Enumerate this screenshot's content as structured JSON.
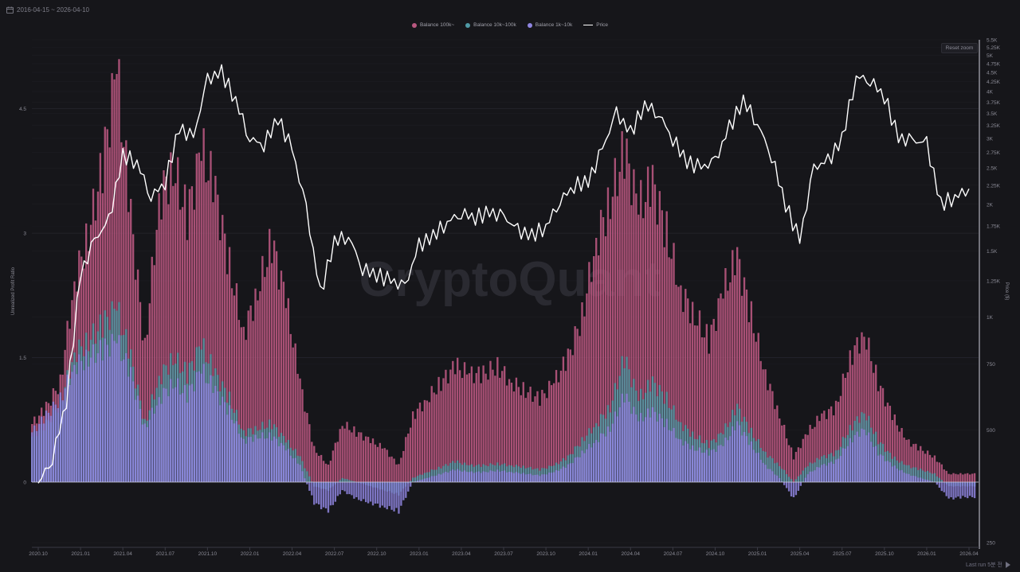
{
  "header": {
    "date_range": "2016-04-15 ~ 2026-04-10",
    "calendar_icon": "calendar-icon",
    "reset_zoom_label": "Reset zoom"
  },
  "watermark": "CryptoQuant",
  "footer": {
    "text": "Last run 5분 전"
  },
  "colors": {
    "background": "#16161a",
    "balance_100k": "#b8577f",
    "balance_10k_100k": "#4f9aa6",
    "balance_1k_10k": "#8f85e0",
    "price": "#ffffff"
  },
  "chart_data": {
    "type": "bar",
    "x_axis_ticks": [
      "2020.10",
      "2021.01",
      "2021.04",
      "2021.07",
      "2021.10",
      "2022.01",
      "2022.04",
      "2022.07",
      "2022.10",
      "2023.01",
      "2023.04",
      "2023.07",
      "2023.10",
      "2024.01",
      "2024.04",
      "2024.07",
      "2024.10",
      "2025.01",
      "2025.04",
      "2025.07",
      "2025.10",
      "2026.01",
      "2026.04"
    ],
    "left_axis": {
      "label": "Unrealized Profit Ratio",
      "ticks": [
        "4.5",
        "3",
        "1.5",
        "0"
      ],
      "ylim": [
        -0.45,
        5.1
      ]
    },
    "right_axis": {
      "label": "Price ($)",
      "scale": "log",
      "ticks": [
        "5.5K",
        "5.25K",
        "5K",
        "4.75K",
        "4.5K",
        "4.25K",
        "4K",
        "3.75K",
        "3.5K",
        "3.25K",
        "3K",
        "2.75K",
        "2.5K",
        "2.25K",
        "2K",
        "1.75K",
        "1.5K",
        "1.25K",
        "1K",
        "750",
        "500",
        "250"
      ],
      "ylim": [
        250,
        5500
      ]
    },
    "legend": [
      "Balance 100k~",
      "Balance 10k~100k",
      "Balance 1k~10k",
      "Price"
    ],
    "legend_position": "top-center",
    "grid": true,
    "months": [
      "2020-10",
      "2020-11",
      "2020-12",
      "2021-01",
      "2021-02",
      "2021-03",
      "2021-04",
      "2021-05",
      "2021-06",
      "2021-07",
      "2021-08",
      "2021-09",
      "2021-10",
      "2021-11",
      "2021-12",
      "2022-01",
      "2022-02",
      "2022-03",
      "2022-04",
      "2022-05",
      "2022-06",
      "2022-07",
      "2022-08",
      "2022-09",
      "2022-10",
      "2022-11",
      "2022-12",
      "2023-01",
      "2023-02",
      "2023-03",
      "2023-04",
      "2023-05",
      "2023-06",
      "2023-07",
      "2023-08",
      "2023-09",
      "2023-10",
      "2023-11",
      "2023-12",
      "2024-01",
      "2024-02",
      "2024-03",
      "2024-04",
      "2024-05",
      "2024-06",
      "2024-07",
      "2024-08",
      "2024-09",
      "2024-10",
      "2024-11",
      "2024-12",
      "2025-01",
      "2025-02",
      "2025-03",
      "2025-04",
      "2025-05",
      "2025-06",
      "2025-07",
      "2025-08",
      "2025-09",
      "2025-10",
      "2025-11",
      "2025-12",
      "2026-01",
      "2026-02",
      "2026-03",
      "2026-04"
    ],
    "series": [
      {
        "name": "Balance 100k~",
        "values": [
          0.7,
          0.9,
          1.2,
          2.4,
          3.0,
          3.8,
          5.0,
          3.2,
          1.6,
          3.4,
          3.8,
          3.2,
          4.0,
          3.5,
          2.6,
          1.8,
          2.3,
          2.9,
          2.2,
          1.2,
          0.4,
          0.2,
          0.7,
          0.6,
          0.5,
          0.4,
          0.2,
          0.8,
          1.0,
          1.2,
          1.4,
          1.3,
          1.3,
          1.4,
          1.2,
          1.1,
          1.0,
          1.2,
          1.5,
          2.0,
          2.9,
          3.4,
          4.0,
          3.3,
          3.6,
          3.0,
          2.3,
          2.0,
          1.7,
          2.3,
          2.7,
          2.0,
          1.3,
          0.8,
          0.3,
          0.6,
          0.8,
          0.9,
          1.5,
          1.8,
          1.2,
          0.8,
          0.5,
          0.4,
          0.3,
          0.1,
          0.1
        ]
      },
      {
        "name": "Balance 10k~100k",
        "values": [
          0.55,
          0.7,
          0.95,
          1.55,
          1.7,
          1.9,
          2.1,
          1.5,
          0.7,
          1.25,
          1.5,
          1.3,
          1.65,
          1.3,
          1.0,
          0.6,
          0.65,
          0.7,
          0.5,
          0.3,
          -0.05,
          -0.1,
          0.05,
          0.0,
          -0.05,
          -0.1,
          -0.15,
          0.05,
          0.12,
          0.18,
          0.25,
          0.2,
          0.2,
          0.22,
          0.2,
          0.18,
          0.15,
          0.2,
          0.3,
          0.5,
          0.7,
          0.9,
          1.5,
          1.0,
          1.2,
          1.0,
          0.7,
          0.55,
          0.45,
          0.6,
          0.9,
          0.6,
          0.35,
          0.2,
          0.0,
          0.2,
          0.3,
          0.35,
          0.65,
          0.85,
          0.5,
          0.3,
          0.2,
          0.15,
          0.1,
          -0.05,
          -0.05
        ]
      },
      {
        "name": "Balance 1k~10k",
        "values": [
          0.6,
          0.8,
          1.0,
          1.4,
          1.5,
          1.6,
          1.7,
          1.3,
          0.65,
          1.0,
          1.2,
          1.05,
          1.35,
          1.1,
          0.85,
          0.5,
          0.55,
          0.55,
          0.4,
          0.2,
          -0.25,
          -0.35,
          -0.1,
          -0.2,
          -0.25,
          -0.3,
          -0.35,
          0.0,
          0.05,
          0.1,
          0.15,
          0.12,
          0.12,
          0.14,
          0.12,
          0.1,
          0.08,
          0.12,
          0.2,
          0.35,
          0.5,
          0.65,
          1.05,
          0.75,
          0.85,
          0.7,
          0.5,
          0.4,
          0.35,
          0.45,
          0.7,
          0.45,
          0.2,
          0.05,
          -0.2,
          0.1,
          0.2,
          0.25,
          0.5,
          0.65,
          0.35,
          0.2,
          0.1,
          0.05,
          0.0,
          -0.2,
          -0.18
        ]
      },
      {
        "name": "Price",
        "values": [
          360,
          420,
          600,
          1300,
          1600,
          1800,
          2700,
          2600,
          2100,
          2300,
          3200,
          3000,
          4300,
          4500,
          3800,
          3000,
          2900,
          3400,
          2800,
          1950,
          1150,
          1600,
          1650,
          1350,
          1300,
          1250,
          1200,
          1550,
          1650,
          1800,
          1900,
          1850,
          1900,
          1850,
          1700,
          1650,
          1750,
          2050,
          2250,
          2300,
          2800,
          3500,
          3100,
          3700,
          3500,
          3000,
          2600,
          2500,
          2600,
          3200,
          3800,
          3300,
          2700,
          2000,
          1600,
          2500,
          2600,
          3000,
          4400,
          4300,
          3900,
          3000,
          2950,
          2900,
          2000,
          2100,
          2200
        ]
      }
    ]
  }
}
